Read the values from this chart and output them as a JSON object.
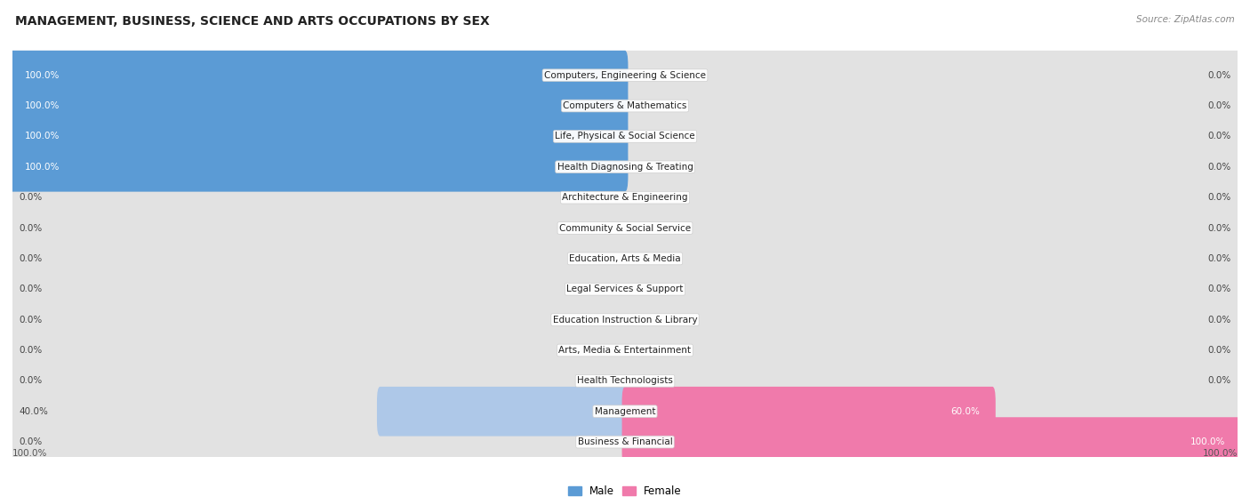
{
  "title": "MANAGEMENT, BUSINESS, SCIENCE AND ARTS OCCUPATIONS BY SEX",
  "source": "Source: ZipAtlas.com",
  "categories": [
    "Computers, Engineering & Science",
    "Computers & Mathematics",
    "Life, Physical & Social Science",
    "Health Diagnosing & Treating",
    "Architecture & Engineering",
    "Community & Social Service",
    "Education, Arts & Media",
    "Legal Services & Support",
    "Education Instruction & Library",
    "Arts, Media & Entertainment",
    "Health Technologists",
    "Management",
    "Business & Financial"
  ],
  "male_pct": [
    100.0,
    100.0,
    100.0,
    100.0,
    0.0,
    0.0,
    0.0,
    0.0,
    0.0,
    0.0,
    0.0,
    40.0,
    0.0
  ],
  "female_pct": [
    0.0,
    0.0,
    0.0,
    0.0,
    0.0,
    0.0,
    0.0,
    0.0,
    0.0,
    0.0,
    0.0,
    60.0,
    100.0
  ],
  "male_color_strong": "#5b9bd5",
  "male_color_light": "#aec8e8",
  "female_color_strong": "#f07aab",
  "female_color_light": "#f4aac8",
  "row_bg_even": "#f2f2f2",
  "row_bg_odd": "#f8f8f8",
  "bar_bg_color": "#e2e2e2",
  "title_fontsize": 10,
  "label_fontsize": 7.5,
  "source_fontsize": 7.5
}
